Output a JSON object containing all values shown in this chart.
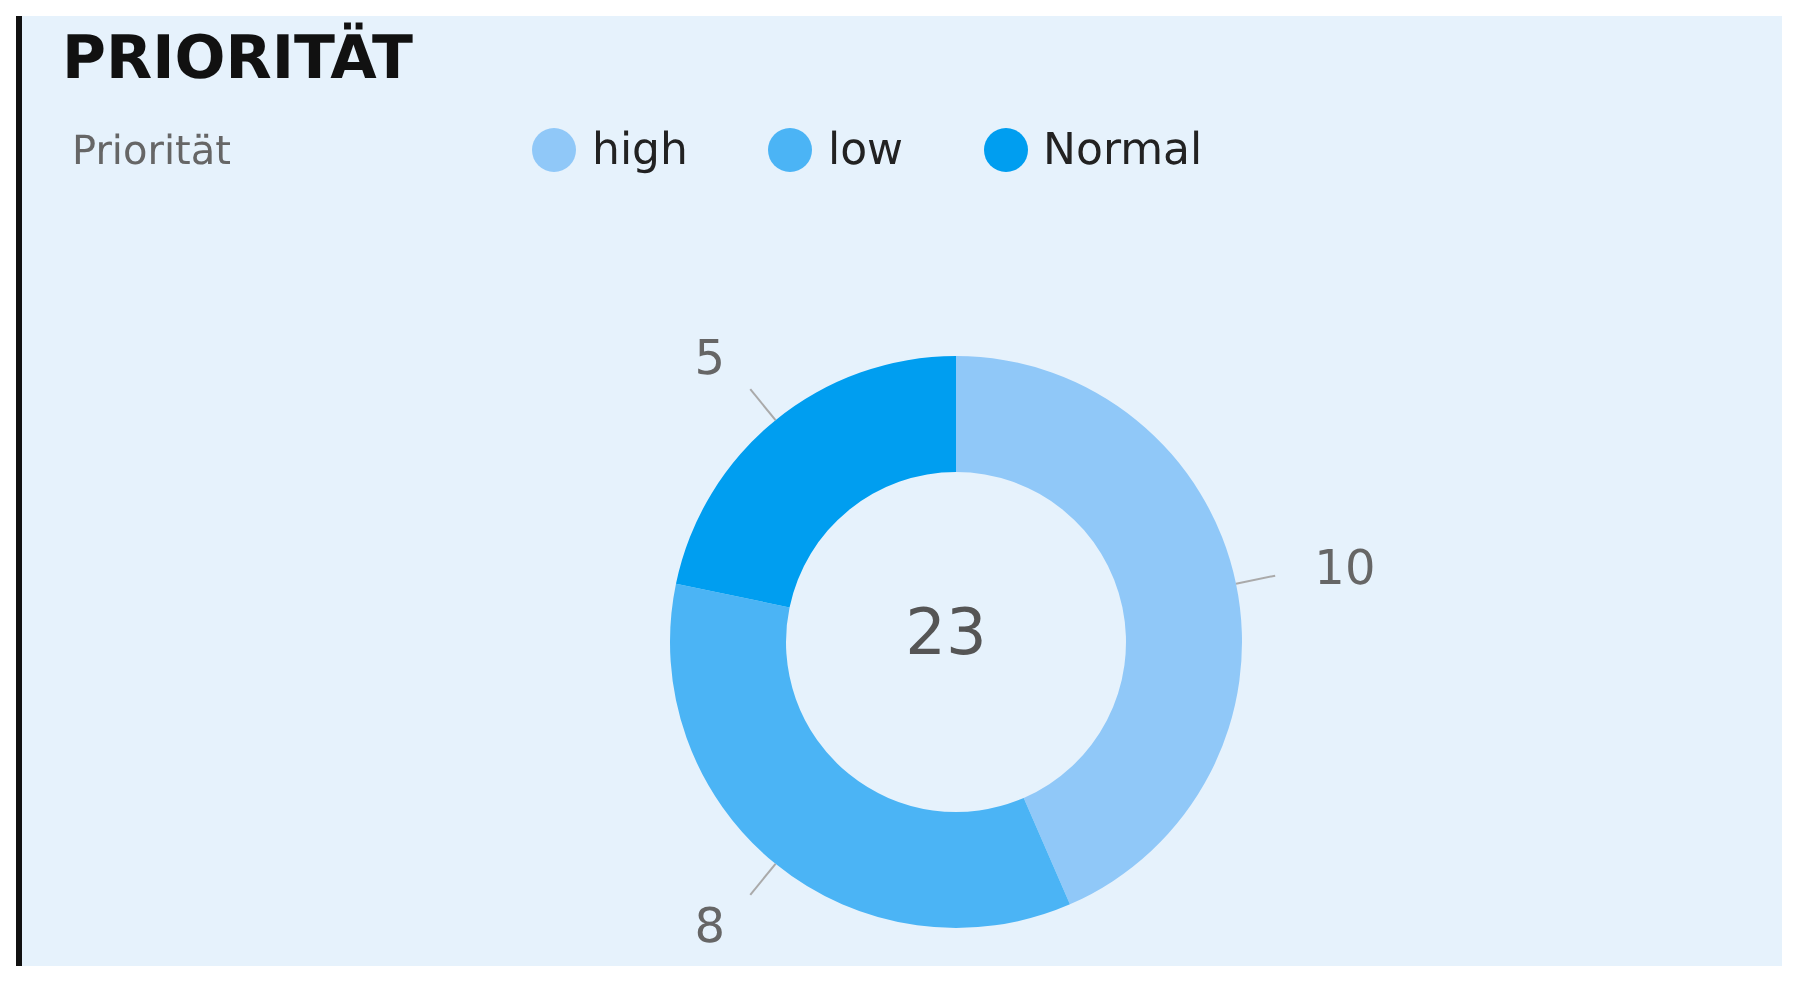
{
  "chart_data": {
    "type": "donut",
    "title": "PRIORITÄT",
    "legend_title": "Priorität",
    "legend": "top",
    "data_labels": true,
    "categories": [
      "high",
      "low",
      "Normal"
    ],
    "values": [
      10,
      8,
      5
    ],
    "colors": [
      "#90c8f8",
      "#4bb4f5",
      "#009ef0"
    ],
    "annotations": [
      "23"
    ]
  }
}
